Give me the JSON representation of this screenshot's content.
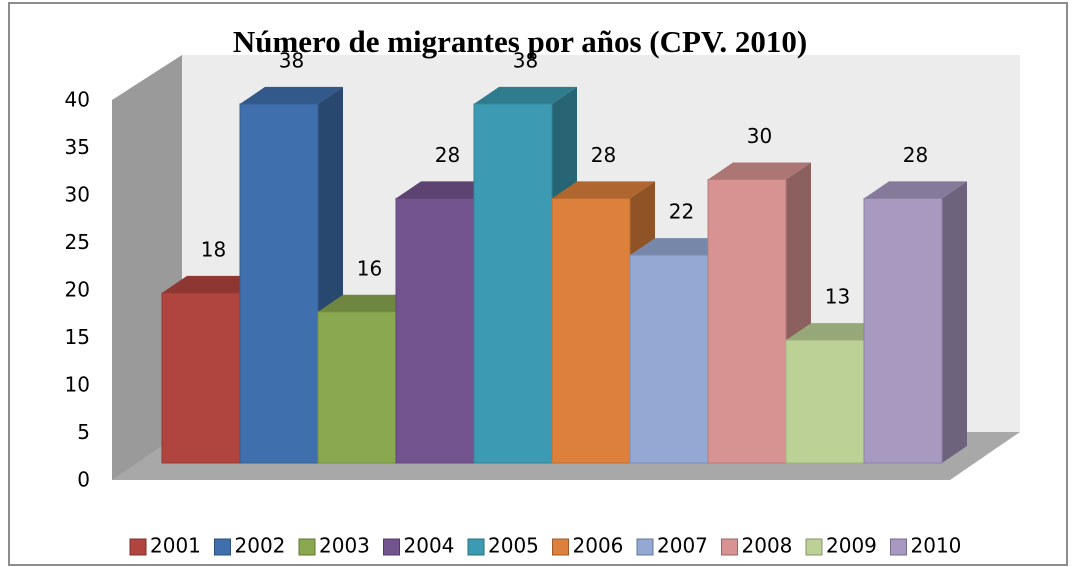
{
  "chart_data": {
    "type": "bar3d",
    "title": "Número de migrantes por años (CPV. 2010)",
    "series": [
      {
        "name": "2001",
        "color": "#b0443f",
        "values": [
          18
        ]
      },
      {
        "name": "2002",
        "color": "#3f6fad",
        "values": [
          38
        ]
      },
      {
        "name": "2003",
        "color": "#8aa84f",
        "values": [
          16
        ]
      },
      {
        "name": "2004",
        "color": "#73548f",
        "values": [
          28
        ]
      },
      {
        "name": "2005",
        "color": "#3c9bb3",
        "values": [
          38
        ]
      },
      {
        "name": "2006",
        "color": "#dc803b",
        "values": [
          28
        ]
      },
      {
        "name": "2007",
        "color": "#93a9d3",
        "values": [
          22
        ]
      },
      {
        "name": "2008",
        "color": "#d69391",
        "values": [
          30
        ]
      },
      {
        "name": "2009",
        "color": "#bcd196",
        "values": [
          13
        ]
      },
      {
        "name": "2010",
        "color": "#a799c0",
        "values": [
          28
        ]
      }
    ],
    "ylim": [
      0,
      40
    ],
    "yticks": [
      0,
      5,
      10,
      15,
      20,
      25,
      30,
      35,
      40
    ],
    "legend": "bottom"
  }
}
